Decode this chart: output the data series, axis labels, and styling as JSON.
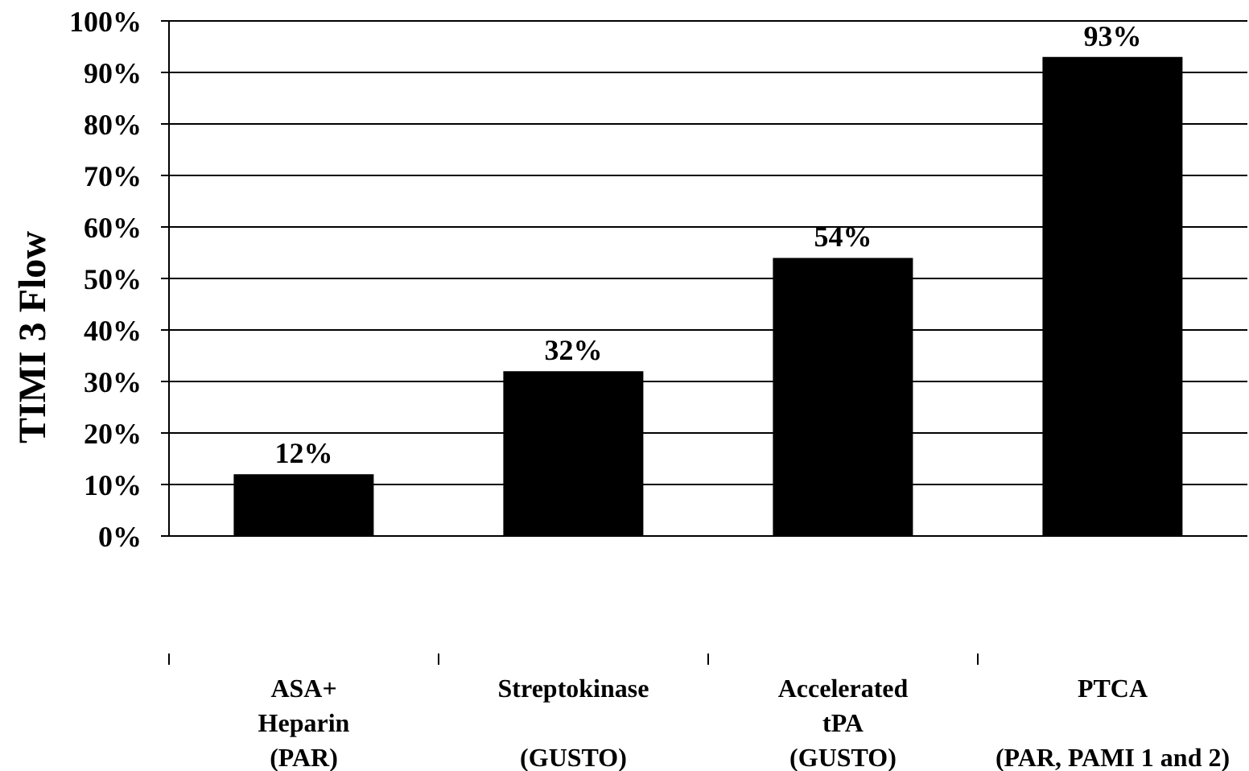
{
  "chart_data": {
    "type": "bar",
    "ylabel": "TIMI 3 Flow",
    "categories": [
      "ASA+\nHeparin\n(PAR)",
      "Streptokinase\n\n(GUSTO)",
      "Accelerated\ntPA\n(GUSTO)",
      "PTCA\n\n(PAR, PAMI 1 and 2)"
    ],
    "values": [
      12,
      32,
      54,
      93
    ],
    "color": "#000000",
    "value_labels": [
      "12%",
      "32%",
      "54%",
      "93%"
    ],
    "ylim": [
      0,
      100
    ],
    "yticks": [
      {
        "value": 0,
        "label": "0%"
      },
      {
        "value": 10,
        "label": "10%"
      },
      {
        "value": 20,
        "label": "20%"
      },
      {
        "value": 30,
        "label": "30%"
      },
      {
        "value": 40,
        "label": "40%"
      },
      {
        "value": 50,
        "label": "50%"
      },
      {
        "value": 60,
        "label": "60%"
      },
      {
        "value": 70,
        "label": "70%"
      },
      {
        "value": 80,
        "label": "80%"
      },
      {
        "value": 90,
        "label": "90%"
      },
      {
        "value": 100,
        "label": "100%"
      }
    ],
    "grid": "y"
  }
}
